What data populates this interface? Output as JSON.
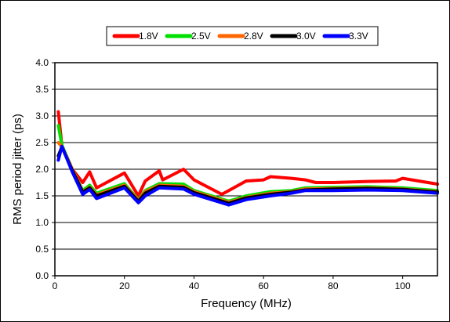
{
  "chart_data": {
    "type": "line",
    "title": "",
    "xlabel": "Frequency (MHz)",
    "ylabel": "RMS period jitter (ps)",
    "xlim": [
      0,
      110
    ],
    "ylim": [
      0,
      4
    ],
    "x_ticks": [
      "0",
      "20",
      "40",
      "60",
      "80",
      "100"
    ],
    "y_ticks": [
      "0.0",
      "0.5",
      "1.0",
      "1.5",
      "2.0",
      "2.5",
      "3.0",
      "3.5",
      "4.0"
    ],
    "grid": true,
    "legend_position": "top",
    "series": [
      {
        "name": "1.8V",
        "color": "#ff0000",
        "points": [
          [
            1,
            3.08
          ],
          [
            2,
            2.45
          ],
          [
            5,
            2.0
          ],
          [
            8,
            1.75
          ],
          [
            10,
            1.95
          ],
          [
            12,
            1.65
          ],
          [
            20,
            1.93
          ],
          [
            24,
            1.5
          ],
          [
            26,
            1.78
          ],
          [
            30,
            1.97
          ],
          [
            31,
            1.8
          ],
          [
            37,
            2.0
          ],
          [
            40,
            1.8
          ],
          [
            48,
            1.53
          ],
          [
            50,
            1.6
          ],
          [
            55,
            1.78
          ],
          [
            60,
            1.8
          ],
          [
            62,
            1.86
          ],
          [
            68,
            1.83
          ],
          [
            72,
            1.8
          ],
          [
            75,
            1.75
          ],
          [
            80,
            1.75
          ],
          [
            90,
            1.77
          ],
          [
            98,
            1.78
          ],
          [
            100,
            1.83
          ],
          [
            110,
            1.72
          ]
        ]
      },
      {
        "name": "2.5V",
        "color": "#00e000",
        "points": [
          [
            1,
            2.82
          ],
          [
            2,
            2.45
          ],
          [
            5,
            2.0
          ],
          [
            8,
            1.6
          ],
          [
            10,
            1.7
          ],
          [
            12,
            1.55
          ],
          [
            20,
            1.73
          ],
          [
            24,
            1.43
          ],
          [
            26,
            1.6
          ],
          [
            30,
            1.73
          ],
          [
            37,
            1.72
          ],
          [
            40,
            1.6
          ],
          [
            50,
            1.4
          ],
          [
            55,
            1.5
          ],
          [
            62,
            1.58
          ],
          [
            68,
            1.6
          ],
          [
            72,
            1.65
          ],
          [
            80,
            1.66
          ],
          [
            90,
            1.67
          ],
          [
            100,
            1.65
          ],
          [
            110,
            1.6
          ]
        ]
      },
      {
        "name": "2.8V",
        "color": "#ff6600",
        "points": [
          [
            1,
            2.5
          ],
          [
            2,
            2.42
          ],
          [
            5,
            2.0
          ],
          [
            8,
            1.58
          ],
          [
            10,
            1.66
          ],
          [
            12,
            1.52
          ],
          [
            20,
            1.7
          ],
          [
            24,
            1.42
          ],
          [
            26,
            1.58
          ],
          [
            30,
            1.7
          ],
          [
            37,
            1.68
          ],
          [
            40,
            1.58
          ],
          [
            50,
            1.38
          ],
          [
            55,
            1.47
          ],
          [
            62,
            1.55
          ],
          [
            68,
            1.58
          ],
          [
            72,
            1.63
          ],
          [
            80,
            1.64
          ],
          [
            90,
            1.65
          ],
          [
            100,
            1.63
          ],
          [
            110,
            1.58
          ]
        ]
      },
      {
        "name": "3.0V",
        "color": "#000000",
        "points": [
          [
            1,
            2.25
          ],
          [
            2,
            2.42
          ],
          [
            5,
            1.98
          ],
          [
            8,
            1.57
          ],
          [
            10,
            1.65
          ],
          [
            12,
            1.5
          ],
          [
            20,
            1.68
          ],
          [
            24,
            1.4
          ],
          [
            26,
            1.55
          ],
          [
            30,
            1.68
          ],
          [
            37,
            1.66
          ],
          [
            40,
            1.56
          ],
          [
            50,
            1.36
          ],
          [
            55,
            1.46
          ],
          [
            62,
            1.53
          ],
          [
            68,
            1.57
          ],
          [
            72,
            1.61
          ],
          [
            80,
            1.63
          ],
          [
            90,
            1.64
          ],
          [
            100,
            1.62
          ],
          [
            110,
            1.57
          ]
        ]
      },
      {
        "name": "3.3V",
        "color": "#0000ff",
        "points": [
          [
            1,
            2.17
          ],
          [
            2,
            2.43
          ],
          [
            5,
            1.95
          ],
          [
            8,
            1.53
          ],
          [
            10,
            1.62
          ],
          [
            12,
            1.45
          ],
          [
            20,
            1.65
          ],
          [
            24,
            1.37
          ],
          [
            26,
            1.5
          ],
          [
            30,
            1.65
          ],
          [
            37,
            1.63
          ],
          [
            40,
            1.53
          ],
          [
            50,
            1.33
          ],
          [
            55,
            1.43
          ],
          [
            62,
            1.5
          ],
          [
            68,
            1.55
          ],
          [
            72,
            1.6
          ],
          [
            80,
            1.6
          ],
          [
            90,
            1.61
          ],
          [
            100,
            1.6
          ],
          [
            110,
            1.55
          ]
        ]
      }
    ]
  }
}
